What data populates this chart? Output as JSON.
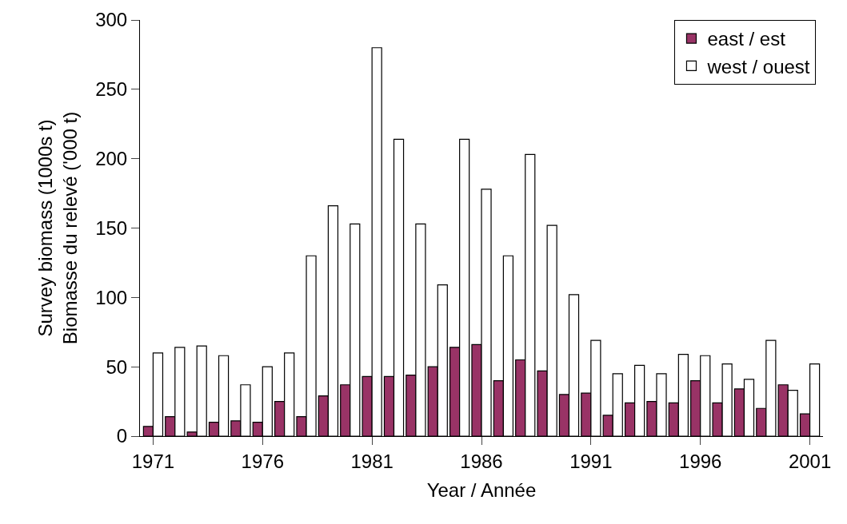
{
  "chart_data": {
    "type": "bar",
    "xlabel": "Year / Année",
    "ylabel": "Survey biomass (1000s t)\nBiomasse du relevé ('000 t)",
    "x": [
      1971,
      1972,
      1973,
      1974,
      1975,
      1976,
      1977,
      1978,
      1979,
      1980,
      1981,
      1982,
      1983,
      1984,
      1985,
      1986,
      1987,
      1988,
      1989,
      1990,
      1991,
      1992,
      1993,
      1994,
      1995,
      1996,
      1997,
      1998,
      1999,
      2000,
      2001
    ],
    "series": [
      {
        "name": "east / est",
        "color": "#993366",
        "values": [
          7,
          14,
          3,
          10,
          11,
          10,
          25,
          14,
          29,
          37,
          43,
          43,
          44,
          50,
          64,
          66,
          40,
          55,
          47,
          30,
          31,
          15,
          24,
          25,
          24,
          40,
          24,
          34,
          20,
          37,
          16
        ]
      },
      {
        "name": "west / ouest",
        "color": "#ffffff",
        "values": [
          60,
          64,
          65,
          58,
          37,
          50,
          60,
          130,
          166,
          153,
          280,
          214,
          153,
          109,
          214,
          178,
          130,
          203,
          152,
          102,
          69,
          45,
          51,
          45,
          59,
          58,
          52,
          41,
          69,
          33,
          52
        ]
      }
    ],
    "xlim": [
      1970.4,
      2001.6
    ],
    "xticks": [
      1971,
      1976,
      1981,
      1986,
      1991,
      1996,
      2001
    ],
    "ylim": [
      0,
      300
    ],
    "yticks": [
      0,
      50,
      100,
      150,
      200,
      250,
      300
    ],
    "grid": false,
    "legend": "top right"
  }
}
